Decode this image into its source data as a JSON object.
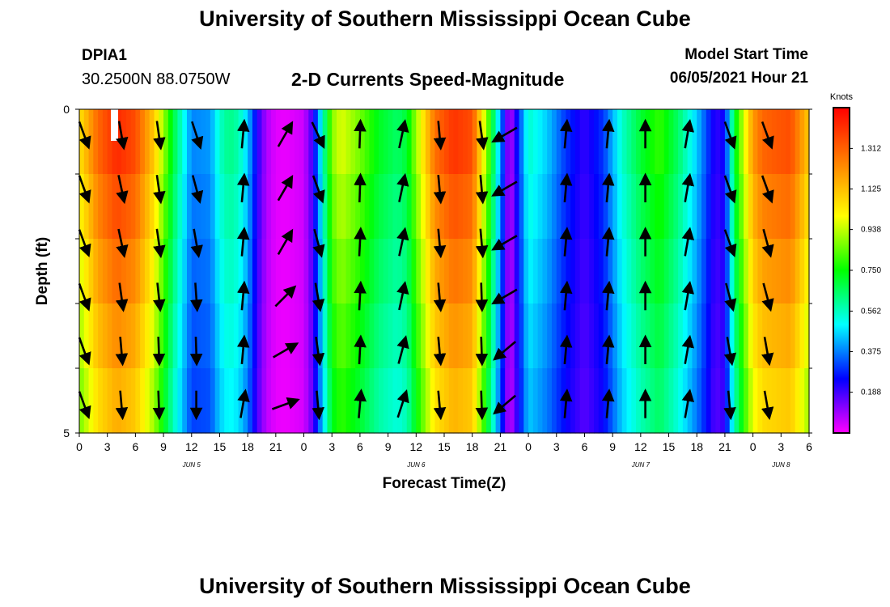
{
  "header": {
    "title_top": "University of Southern Mississippi Ocean Cube",
    "title_bottom": "University of Southern Mississippi Ocean Cube",
    "station": "DPIA1",
    "coords": "30.2500N  88.0750W",
    "subtitle": "2-D Currents Speed-Magnitude",
    "model_label": "Model Start Time",
    "model_time": "06/05/2021 Hour 21"
  },
  "chart_data": {
    "type": "heatmap",
    "title": "2-D Currents Speed-Magnitude",
    "xlabel": "Forecast Time(Z)",
    "ylabel": "Depth (ft)",
    "x_hours": [
      0,
      78
    ],
    "ylim": [
      0,
      5
    ],
    "y_ticks": [
      {
        "value": 0,
        "label": "0"
      },
      {
        "value": 5,
        "label": "5"
      }
    ],
    "x_tick_labels": [
      "0",
      "3",
      "6",
      "9",
      "12",
      "15",
      "18",
      "21",
      "0",
      "3",
      "6",
      "9",
      "12",
      "15",
      "18",
      "21",
      "0",
      "3",
      "6",
      "9",
      "12",
      "15",
      "18",
      "21",
      "0",
      "3",
      "6"
    ],
    "date_labels": [
      {
        "hour": 12,
        "label": "JUN 5"
      },
      {
        "hour": 36,
        "label": "JUN 6"
      },
      {
        "hour": 60,
        "label": "JUN 7"
      },
      {
        "hour": 75,
        "label": "JUN 8"
      }
    ],
    "colorbar": {
      "unit": "Knots",
      "range": [
        0,
        1.5
      ],
      "labels": [
        "0.188",
        "0.375",
        "0.562",
        "0.750",
        "0.938",
        "1.125",
        "1.312"
      ],
      "stops": [
        "#ff00ff",
        "#0000ff",
        "#00ffff",
        "#00ff00",
        "#ffff00",
        "#ff8000",
        "#ff0000"
      ]
    },
    "speed_profile": {
      "hours": [
        0,
        2,
        4,
        6,
        8,
        10,
        12,
        14,
        15,
        16,
        17,
        18,
        19,
        20,
        21,
        22,
        24,
        25,
        26,
        27,
        28,
        30,
        32,
        34,
        35,
        36,
        38,
        40,
        42,
        44,
        46,
        48,
        50,
        52,
        54,
        56,
        58,
        60,
        62,
        64,
        66,
        68,
        69,
        70,
        71,
        72,
        73,
        74,
        76,
        78
      ],
      "speeds": [
        1.05,
        1.3,
        1.42,
        1.35,
        1.1,
        0.7,
        0.38,
        0.4,
        0.55,
        0.62,
        0.58,
        0.45,
        0.22,
        0.08,
        0.03,
        0.02,
        0.05,
        0.2,
        0.55,
        0.88,
        0.97,
        0.86,
        0.72,
        0.65,
        0.7,
        0.9,
        1.28,
        1.4,
        1.35,
        0.75,
        0.05,
        0.55,
        0.45,
        0.3,
        0.2,
        0.3,
        0.55,
        0.7,
        0.8,
        0.65,
        0.45,
        0.2,
        0.25,
        0.7,
        0.95,
        1.2,
        1.3,
        1.32,
        1.35,
        1.1
      ],
      "depth_factor_top": 1.0,
      "depth_factor_bottom": 0.82
    },
    "vector_columns": [
      {
        "hour": 0.5,
        "dirs": [
          160,
          160,
          160,
          160,
          160,
          160
        ]
      },
      {
        "hour": 4.5,
        "dirs": [
          170,
          168,
          168,
          172,
          175,
          175
        ]
      },
      {
        "hour": 8.5,
        "dirs": [
          172,
          172,
          172,
          174,
          178,
          178
        ]
      },
      {
        "hour": 12.5,
        "dirs": [
          162,
          165,
          170,
          176,
          178,
          180
        ]
      },
      {
        "hour": 17.5,
        "dirs": [
          5,
          5,
          5,
          5,
          5,
          10
        ]
      },
      {
        "hour": 22.0,
        "dirs": [
          30,
          30,
          30,
          45,
          60,
          70
        ]
      },
      {
        "hour": 25.5,
        "dirs": [
          155,
          160,
          165,
          170,
          172,
          175
        ]
      },
      {
        "hour": 30.0,
        "dirs": [
          2,
          2,
          3,
          3,
          3,
          5
        ]
      },
      {
        "hour": 34.5,
        "dirs": [
          12,
          12,
          12,
          12,
          15,
          18
        ]
      },
      {
        "hour": 38.5,
        "dirs": [
          175,
          175,
          175,
          175,
          175,
          175
        ]
      },
      {
        "hour": 43.0,
        "dirs": [
          172,
          175,
          175,
          178,
          178,
          178
        ]
      },
      {
        "hour": 45.5,
        "dirs": [
          240,
          240,
          240,
          240,
          230,
          230
        ]
      },
      {
        "hour": 52.0,
        "dirs": [
          5,
          5,
          5,
          5,
          5,
          5
        ]
      },
      {
        "hour": 56.5,
        "dirs": [
          5,
          5,
          5,
          5,
          5,
          5
        ]
      },
      {
        "hour": 60.5,
        "dirs": [
          0,
          0,
          0,
          0,
          0,
          0
        ]
      },
      {
        "hour": 65.0,
        "dirs": [
          10,
          10,
          10,
          10,
          10,
          10
        ]
      },
      {
        "hour": 69.5,
        "dirs": [
          160,
          160,
          160,
          165,
          170,
          175
        ]
      },
      {
        "hour": 73.5,
        "dirs": [
          160,
          160,
          165,
          165,
          170,
          170
        ]
      }
    ]
  }
}
